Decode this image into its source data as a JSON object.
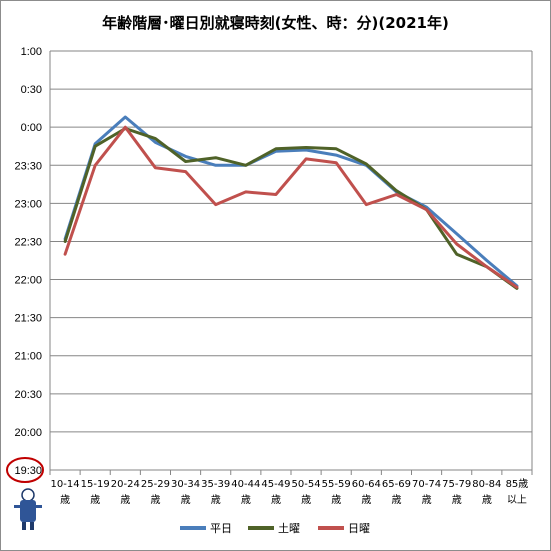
{
  "chart_data": {
    "type": "line",
    "title": "年齢階層･曜日別就寝時刻(女性、時：分)(2021年)",
    "xlabel": "",
    "ylabel": "",
    "categories": [
      "10-14 歳",
      "15-19 歳",
      "20-24 歳",
      "25-29 歳",
      "30-34 歳",
      "35-39 歳",
      "40-44 歳",
      "45-49 歳",
      "50-54 歳",
      "55-59 歳",
      "60-64 歳",
      "65-69 歳",
      "70-74 歳",
      "75-79 歳",
      "80-84 歳",
      "85歳 以上"
    ],
    "y_tick_labels": [
      "1:00",
      "0:30",
      "0:00",
      "23:30",
      "23:00",
      "22:30",
      "22:00",
      "21:30",
      "21:00",
      "20:30",
      "20:00",
      "19:30"
    ],
    "y_axis_note": "y values are clock times; after-midnight values are shown as 24:xx",
    "ylim": [
      "19:30",
      "25:00"
    ],
    "grid": true,
    "legend_position": "bottom",
    "series": [
      {
        "name": "平日",
        "color": "#4A7EBB",
        "values": [
          "22:32",
          "23:47",
          "24:08",
          "23:48",
          "23:37",
          "23:30",
          "23:30",
          "23:41",
          "23:42",
          "23:38",
          "23:30",
          "23:09",
          "22:57",
          "22:36",
          "22:15",
          "21:55"
        ]
      },
      {
        "name": "土曜",
        "color": "#4F6228",
        "values": [
          "22:30",
          "23:45",
          "23:59",
          "23:51",
          "23:33",
          "23:36",
          "23:30",
          "23:43",
          "23:44",
          "23:43",
          "23:31",
          "23:10",
          "22:55",
          "22:20",
          "22:10",
          "21:53"
        ]
      },
      {
        "name": "日曜",
        "color": "#C0504D",
        "values": [
          "22:20",
          "23:30",
          "24:00",
          "23:28",
          "23:25",
          "22:59",
          "23:09",
          "23:07",
          "23:35",
          "23:32",
          "22:59",
          "23:07",
          "22:55",
          "22:28",
          "22:10",
          "21:54"
        ]
      }
    ]
  }
}
